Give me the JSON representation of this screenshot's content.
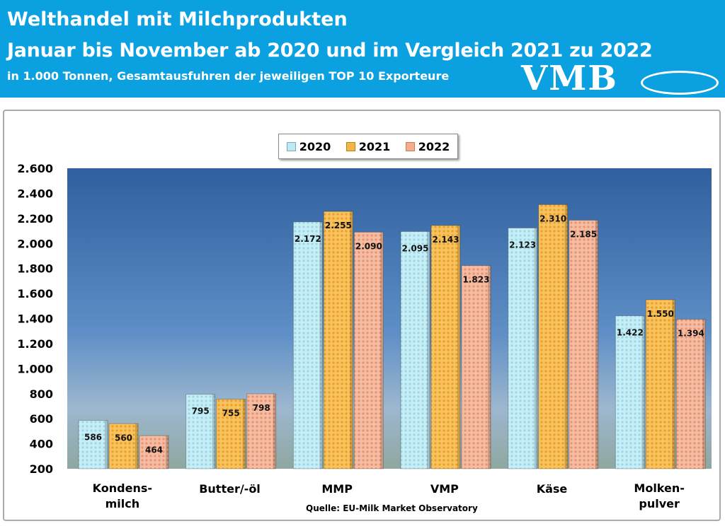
{
  "header": {
    "title": "Welthandel mit Milchprodukten",
    "subtitle": "Januar bis November ab 2020 und im Vergleich 2021 zu 2022",
    "unit_note": "in 1.000 Tonnen, Gesamtausfuhren der jeweiligen TOP 10 Exporteure",
    "logo": "VMB"
  },
  "source": "Quelle: EU-Milk Market Observatory",
  "colors": {
    "header": "#0ba0e0",
    "2020": "#bfe9f2",
    "2021": "#f6b54a",
    "2022": "#f2ae8e"
  },
  "chart_data": {
    "type": "bar",
    "categories": [
      "Kondens-\nmilch",
      "Butter/-öl",
      "MMP",
      "VMP",
      "Käse",
      "Molken-\npulver"
    ],
    "series": [
      {
        "name": "2020",
        "values": [
          586,
          795,
          2172,
          2095,
          2123,
          1422
        ],
        "labels": [
          "586",
          "795",
          "2.172",
          "2.095",
          "2.123",
          "1.422"
        ]
      },
      {
        "name": "2021",
        "values": [
          560,
          755,
          2255,
          2143,
          2310,
          1550
        ],
        "labels": [
          "560",
          "755",
          "2.255",
          "2.143",
          "2.310",
          "1.550"
        ]
      },
      {
        "name": "2022",
        "values": [
          464,
          798,
          2090,
          1823,
          2185,
          1394
        ],
        "labels": [
          "464",
          "798",
          "2.090",
          "1.823",
          "2.185",
          "1.394"
        ]
      }
    ],
    "ylim": [
      200,
      2600
    ],
    "yticks": [
      "200",
      "400",
      "600",
      "800",
      "1.000",
      "1.200",
      "1.400",
      "1.600",
      "1.800",
      "2.000",
      "2.200",
      "2.400",
      "2.600"
    ],
    "legend": "top-center",
    "grid": false
  }
}
